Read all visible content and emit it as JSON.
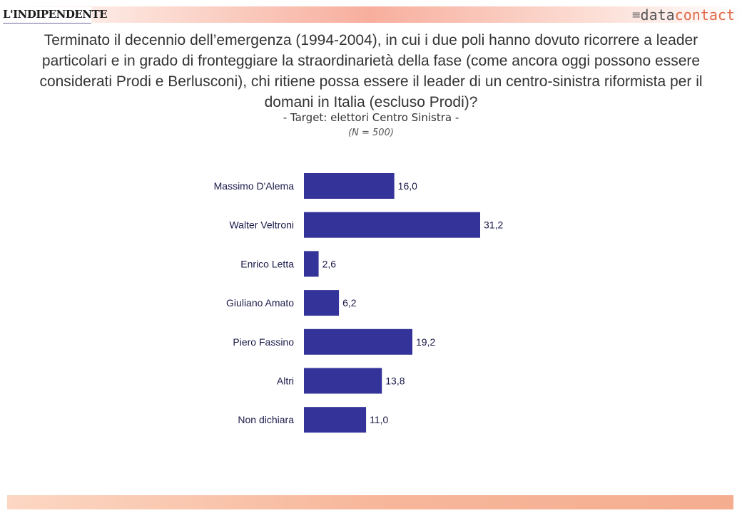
{
  "header": {
    "logo_left": "L'INDIPENDENTE",
    "logo_right_prefix": "data",
    "logo_right_suffix": "contact",
    "logo_right_icon": "speed-lines-icon"
  },
  "title": "Terminato il decennio dell’emergenza (1994-2004), in cui i due poli hanno dovuto ricorrere a leader particolari e in grado di fronteggiare la straordinarietà della fase (come ancora oggi possono essere considerati Prodi e Berlusconi), chi ritiene possa essere il leader di un centro-sinistra riformista per il domani in Italia (escluso Prodi)?",
  "subtitle": "- Target: elettori Centro Sinistra -",
  "note": "(N = 500)",
  "colors": {
    "bar": "#333399",
    "accent": "#e06a4a"
  },
  "chart_data": {
    "type": "bar",
    "orientation": "horizontal",
    "categories": [
      "Massimo D'Alema",
      "Walter Veltroni",
      "Enrico Letta",
      "Giuliano Amato",
      "Piero Fassino",
      "Altri",
      "Non dichiara"
    ],
    "values": [
      16.0,
      31.2,
      2.6,
      6.2,
      19.2,
      13.8,
      11.0
    ],
    "value_labels": [
      "16,0",
      "31,2",
      "2,6",
      "6,2",
      "19,2",
      "13,8",
      "11,0"
    ],
    "xlim": [
      0,
      31.2
    ],
    "grid": false,
    "legend": "none"
  }
}
